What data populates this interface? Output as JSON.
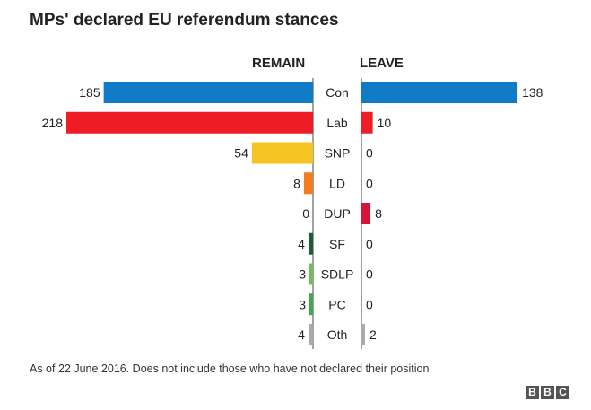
{
  "page": {
    "title": "MPs' declared EU referendum stances",
    "note": "As of 22 June 2016. Does not include those who have not declared their position",
    "logo_letters": [
      "B",
      "B",
      "C"
    ]
  },
  "chart_data": {
    "type": "bar",
    "orientation": "horizontal-diverging",
    "title": "MPs' declared EU referendum stances",
    "left_label": "REMAIN",
    "right_label": "LEAVE",
    "categories": [
      "Con",
      "Lab",
      "SNP",
      "LD",
      "DUP",
      "SF",
      "SDLP",
      "PC",
      "Oth"
    ],
    "series": [
      {
        "name": "REMAIN",
        "values": [
          185,
          218,
          54,
          8,
          0,
          4,
          3,
          3,
          4
        ]
      },
      {
        "name": "LEAVE",
        "values": [
          138,
          10,
          0,
          0,
          8,
          0,
          0,
          0,
          2
        ]
      }
    ],
    "colors": [
      "#0f7bc7",
      "#ee1c24",
      "#f5c322",
      "#f47b20",
      "#d4153a",
      "#1a5c36",
      "#6fbf55",
      "#3ea94d",
      "#aaaaaa"
    ],
    "axis_color": "#444444",
    "xlim": [
      0,
      218
    ]
  }
}
